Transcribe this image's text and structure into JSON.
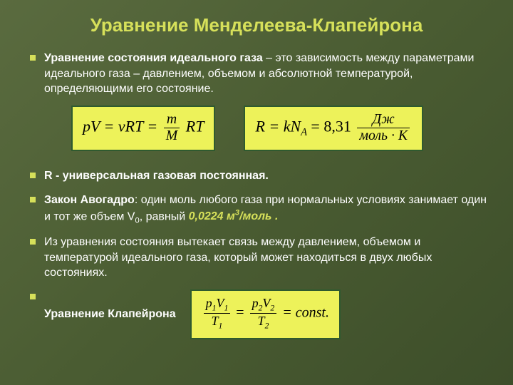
{
  "title": "Уравнение Менделеева-Клапейрона",
  "bullets": {
    "b1_bold": "Уравнение состояния идеального газа",
    "b1_rest": " – это зависимость между параметрами идеального газа – давлением, объемом и абсолютной температурой, определяющими его состояние.",
    "b2_bold": "R - универсальная газовая постоянная.",
    "b3_bold": "Закон Авогадро",
    "b3_rest": ": один моль любого газа при нормальных условиях занимает один и тот же объем V",
    "b3_rest2": ", равный  ",
    "b3_val": "0,0224 м",
    "b3_unit_tail": "/моль .",
    "b4": "Из уравнения состояния вытекает связь между давлением, объемом и температурой идеального газа, который может находиться в двух любых состояниях.",
    "b5_bold": "Уравнение Клапейрона"
  },
  "eq1": {
    "lhs": "pV = νRT =",
    "frac_num": "m",
    "frac_den": "M",
    "rhs": "RT"
  },
  "eq2": {
    "pre": "R = kN",
    "sub": "A",
    "mid": " = 8,31",
    "unit_num": "Дж",
    "unit_den": "моль · К"
  },
  "eq3": {
    "p1": "p",
    "v1": "V",
    "s1": "1",
    "t1": "T",
    "p2": "p",
    "v2": "V",
    "s2": "2",
    "t2": "T",
    "eq": " = ",
    "tail": " = const."
  },
  "style": {
    "title_color": "#d6e05a",
    "value_color": "#d6e05a"
  }
}
